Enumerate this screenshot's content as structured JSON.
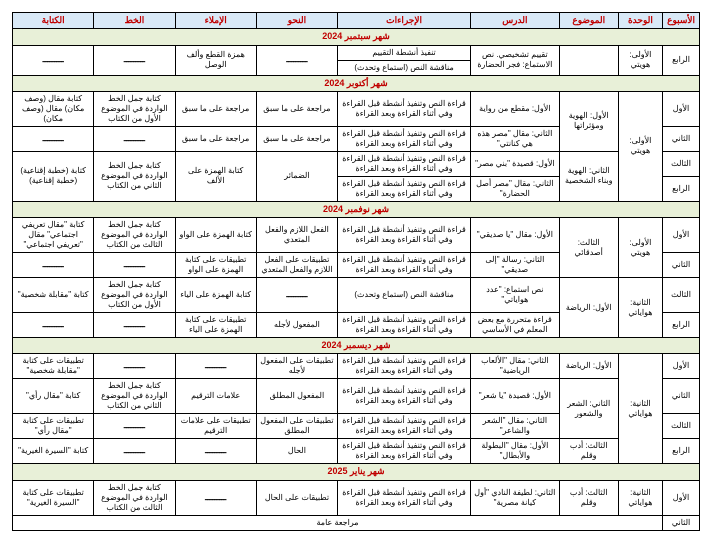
{
  "headers": [
    "الأسبوع",
    "الوحدة",
    "الموضوع",
    "الدرس",
    "الإجراءات",
    "النحو",
    "الإملاء",
    "الخط",
    "الكتابة"
  ],
  "months": {
    "sep": "شهر سبتمبر 2024",
    "oct": "شهر أكتوبر 2024",
    "nov": "شهر نوفمبر 2024",
    "dec": "شهر ديسمبر 2024",
    "jan": "شهر يناير 2025"
  },
  "dash": "ـــــــــ",
  "review": "مراجعة عامة",
  "sep_rows": [
    {
      "week": "الرابع",
      "unit": "الأولى: هويتي",
      "topic": "",
      "lesson": "تقييم تشخيصي. نص الاستماع: فجر الحضارة",
      "proc": "تنفيذ أنشطة التقييم",
      "proc2": "مناقشة النص (استماع وتحدث)",
      "nahw": "ـــــــــ",
      "imla": "همزة القطع وألف الوصل",
      "khat": "ـــــــــ",
      "kitaba": "ـــــــــ"
    }
  ],
  "oct_rows": [
    {
      "week": "الأول",
      "unit": "الأولى: هويتي",
      "topic": "الأول: الهوية ومؤثراتها",
      "lesson": "الأول: مقطع من رواية",
      "proc": "قراءة النص وتنفيذ أنشطة قبل القراءة وفي أثناء القراءة وبعد القراءة",
      "nahw": "مراجعة على ما سبق",
      "imla": "مراجعة على ما سبق",
      "khat": "كتابة جمل الخط الواردة في الموضوع الأول من الكتاب",
      "kitaba": "كتابة مقال (وصف مكان) مقال (وصف مكان)"
    },
    {
      "week": "الثاني",
      "unit": "",
      "topic": "",
      "lesson": "الثاني: مقال \"مصر هذه هي كنانتي\"",
      "proc": "قراءة النص وتنفيذ أنشطة قبل القراءة وفي أثناء القراءة وبعد القراءة",
      "nahw": "مراجعة على ما سبق",
      "imla": "مراجعة على ما سبق",
      "khat": "ـــــــــ",
      "kitaba": "ـــــــــ"
    },
    {
      "week": "الثالث",
      "unit": "",
      "topic": "الثاني: الهوية وبناء الشخصية",
      "lesson": "الأول: قصيدة \"بني مصر\"",
      "proc": "قراءة النص وتنفيذ أنشطة قبل القراءة وفي أثناء القراءة وبعد القراءة",
      "nahw": "الضمائر",
      "imla": "كتابة الهمزة على الألف",
      "khat": "كتابة جمل الخط الواردة في الموضوع الثاني من الكتاب",
      "kitaba": "كتابة (خطبة إقناعية) (خطبة إقناعية)"
    },
    {
      "week": "الرابع",
      "unit": "",
      "topic": "",
      "lesson": "الثاني: مقال \"مصر أصل الحضارة\"",
      "proc": "قراءة النص وتنفيذ أنشطة قبل القراءة وفي أثناء القراءة وبعد القراءة",
      "nahw": "",
      "imla": "",
      "khat": "",
      "kitaba": ""
    }
  ],
  "nov_rows": [
    {
      "week": "الأول",
      "unit": "الأولى: هويتي",
      "topic": "الثالث: أصدقائي",
      "lesson": "الأول: مقال \"يا صديقي\"",
      "proc": "قراءة النص وتنفيذ أنشطة قبل القراءة وفي أثناء القراءة وبعد القراءة",
      "nahw": "الفعل اللازم والفعل المتعدي",
      "imla": "كتابة الهمزة على الواو",
      "khat": "كتابة جمل الخط الواردة في الموضوع الثالث من الكتاب",
      "kitaba": "كتابة \"مقال تعريفي اجتماعي\" مقال \"تعريفي اجتماعي\""
    },
    {
      "week": "الثاني",
      "unit": "",
      "topic": "",
      "lesson": "الثاني: رسالة \"إلى صديقي\"",
      "proc": "قراءة النص وتنفيذ أنشطة قبل القراءة وفي أثناء القراءة وبعد القراءة",
      "nahw": "تطبيقات على الفعل اللازم والفعل المتعدي",
      "imla": "تطبيقات على كتابة الهمزة على الواو",
      "khat": "ـــــــــ",
      "kitaba": "ـــــــــ"
    },
    {
      "week": "الثالث",
      "unit": "الثانية: هواياتي",
      "topic": "الأول: الرياضة",
      "lesson": "نص استماع: \"عدد هواياتي\"",
      "proc": "مناقشة النص (استماع وتحدث)",
      "nahw": "ـــــــــ",
      "imla": "كتابة الهمزة على الياء",
      "khat": "كتابة جمل الخط الواردة في الموضوع الأول من الكتاب",
      "kitaba": "كتابة \"مقابلة شخصية\""
    },
    {
      "week": "الرابع",
      "unit": "",
      "topic": "",
      "lesson": "قراءة متحررة مع بعض المعلم في الأساسي",
      "proc": "قراءة النص وتنفيذ أنشطة قبل القراءة وفي أثناء القراءة وبعد القراءة",
      "nahw": "المفعول لأجله",
      "imla": "تطبيقات على كتابة الهمزة على الياء",
      "khat": "ـــــــــ",
      "kitaba": "ـــــــــ"
    }
  ],
  "dec_rows": [
    {
      "week": "الأول",
      "unit": "الثانية: هواياتي",
      "topic": "الأول: الرياضة",
      "lesson": "الثاني: مقال \"الألعاب الرياضية\"",
      "proc": "قراءة النص وتنفيذ أنشطة قبل القراءة وفي أثناء القراءة وبعد القراءة",
      "nahw": "تطبيقات على المفعول لأجله",
      "imla": "ـــــــــ",
      "khat": "ـــــــــ",
      "kitaba": "تطبيقات على كتابة \"مقابلة شخصية\""
    },
    {
      "week": "الثاني",
      "unit": "",
      "topic": "الثاني: الشعر والشعور",
      "lesson": "الأول: قصيدة \"يا شعر\"",
      "proc": "قراءة النص وتنفيذ أنشطة قبل القراءة وفي أثناء القراءة وبعد القراءة",
      "nahw": "المفعول المطلق",
      "imla": "علامات الترقيم",
      "khat": "كتابة جمل الخط الواردة في الموضوع الثاني من الكتاب",
      "kitaba": "كتابة \"مقال رأي\""
    },
    {
      "week": "الثالث",
      "unit": "",
      "topic": "",
      "lesson": "الثاني: مقال \"الشعر والشاعر\"",
      "proc": "قراءة النص وتنفيذ أنشطة قبل القراءة وفي أثناء القراءة وبعد القراءة",
      "nahw": "تطبيقات على المفعول المطلق",
      "imla": "تطبيقات على علامات الترقيم",
      "khat": "ـــــــــ",
      "kitaba": "تطبيقات على كتابة \"مقال رأي\""
    },
    {
      "week": "الرابع",
      "unit": "",
      "topic": "الثالث: أدب وقلم",
      "lesson": "الأول: مقال \"البطولة والأبطال\"",
      "proc": "قراءة النص وتنفيذ أنشطة قبل القراءة وفي أثناء القراءة وبعد القراءة",
      "nahw": "الحال",
      "imla": "ـــــــــ",
      "khat": "ـــــــــ",
      "kitaba": "كتابة \"السيرة الغيرية\""
    }
  ],
  "jan_rows": [
    {
      "week": "الأول",
      "unit": "الثانية: هواياتي",
      "topic": "الثالث: أدب وقلم",
      "lesson": "الثاني: لطيفة النادي \"أول كيانة مصرية\"",
      "proc": "قراءة النص وتنفيذ أنشطة قبل القراءة وفي أثناء القراءة وبعد القراءة",
      "nahw": "تطبيقات على الحال",
      "imla": "ـــــــــ",
      "khat": "كتابة جمل الخط الواردة في الموضوع الثالث من الكتاب",
      "kitaba": "تطبيقات على كتابة \"السيرة الغيرية\""
    },
    {
      "week": "الثاني"
    }
  ]
}
